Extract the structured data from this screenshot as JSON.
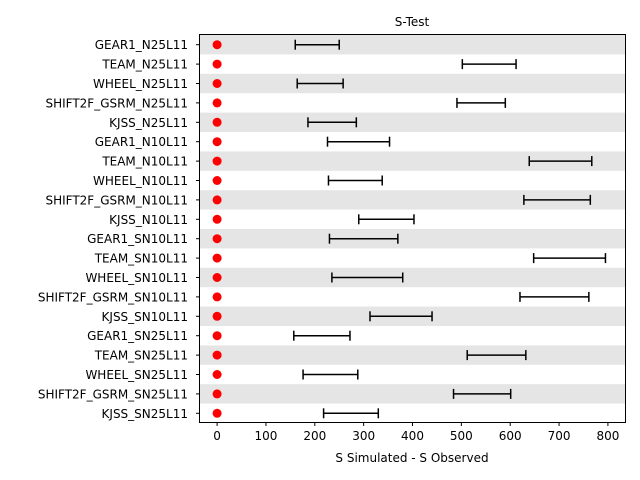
{
  "chart_data": {
    "type": "scatter",
    "title": "S-Test",
    "xlabel": "S Simulated - S Observed",
    "ylabel": "",
    "xlim": [
      -35,
      835
    ],
    "xticks": [
      0,
      100,
      200,
      300,
      400,
      500,
      600,
      700,
      800
    ],
    "grid": false,
    "legend": "none",
    "point_color": "#ff0000",
    "errorbar_color": "#000000",
    "band_color": "#e5e5e5",
    "categories": [
      "GEAR1_N25L11",
      "TEAM_N25L11",
      "WHEEL_N25L11",
      "SHIFT2F_GSRM_N25L11",
      "KJSS_N25L11",
      "GEAR1_N10L11",
      "TEAM_N10L11",
      "WHEEL_N10L11",
      "SHIFT2F_GSRM_N10L11",
      "KJSS_N10L11",
      "GEAR1_SN10L11",
      "TEAM_SN10L11",
      "WHEEL_SN10L11",
      "SHIFT2F_GSRM_SN10L11",
      "KJSS_SN10L11",
      "GEAR1_SN25L11",
      "TEAM_SN25L11",
      "WHEEL_SN25L11",
      "SHIFT2F_GSRM_SN25L11",
      "KJSS_SN25L11"
    ],
    "observed": [
      0,
      0,
      0,
      0,
      0,
      0,
      0,
      0,
      0,
      0,
      0,
      0,
      0,
      0,
      0,
      0,
      0,
      0,
      0,
      0
    ],
    "simulated_low": [
      160,
      502,
      164,
      491,
      186,
      226,
      639,
      228,
      628,
      290,
      230,
      648,
      235,
      620,
      313,
      157,
      512,
      176,
      484,
      218
    ],
    "simulated_high": [
      250,
      612,
      258,
      590,
      285,
      353,
      767,
      338,
      764,
      403,
      370,
      795,
      380,
      761,
      440,
      272,
      632,
      288,
      601,
      330
    ],
    "shaded_rows": [
      0,
      2,
      4,
      6,
      8,
      10,
      12,
      14,
      16,
      18
    ]
  }
}
